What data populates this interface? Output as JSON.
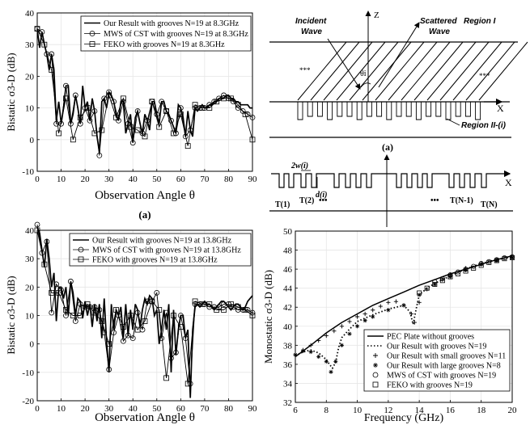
{
  "colors": {
    "line": "#000000",
    "grid": "#e6e6e6",
    "background": "#ffffff"
  },
  "chart_data": [
    {
      "type": "line",
      "panel_label": "(a)",
      "xlabel": "Observation Angle θ",
      "ylabel": "Bistatic σ3-D (dB)",
      "xlim": [
        0,
        90
      ],
      "ylim": [
        -10,
        40
      ],
      "xticks": [
        0,
        10,
        20,
        30,
        40,
        50,
        60,
        70,
        80,
        90
      ],
      "yticks": [
        -10,
        0,
        10,
        20,
        30,
        40
      ],
      "grid": true,
      "legend_position": "top-right",
      "series": [
        {
          "name": "Our Result with grooves N=19 at 8.3GHz",
          "marker": "none",
          "x": [
            0,
            1,
            2,
            3,
            4,
            5,
            6,
            7,
            8,
            9,
            10,
            11,
            12,
            13,
            14,
            15,
            16,
            17,
            18,
            19,
            20,
            21,
            22,
            23,
            24,
            25,
            26,
            27,
            28,
            29,
            30,
            31,
            32,
            33,
            34,
            35,
            36,
            37,
            38,
            39,
            40,
            41,
            42,
            43,
            44,
            45,
            46,
            47,
            48,
            49,
            50,
            51,
            52,
            53,
            54,
            55,
            56,
            57,
            58,
            59,
            60,
            61,
            62,
            63,
            64,
            65,
            66,
            67,
            68,
            69,
            70,
            71,
            72,
            73,
            74,
            75,
            76,
            77,
            78,
            79,
            80,
            81,
            82,
            83,
            84,
            85,
            86,
            87,
            88,
            89,
            90
          ],
          "y": [
            35,
            29,
            34,
            30,
            27,
            22,
            27,
            22,
            6,
            12,
            5,
            10,
            17,
            17,
            5,
            8,
            14,
            10,
            5,
            17,
            10,
            12,
            6,
            13,
            9,
            1,
            -4,
            12,
            13,
            10,
            15,
            14,
            12,
            8,
            6,
            12,
            12,
            2,
            5,
            8,
            -1,
            7,
            9,
            5,
            2,
            8,
            6,
            3,
            12,
            12,
            8,
            5,
            12,
            12,
            9,
            8,
            6,
            4,
            2,
            11,
            10,
            7,
            1,
            9,
            3,
            1,
            10,
            9,
            10,
            11,
            10,
            10,
            11,
            11,
            12,
            12,
            13,
            13,
            13,
            14,
            14,
            13,
            13,
            12,
            12,
            11,
            11,
            11,
            11,
            10,
            10
          ]
        },
        {
          "name": "MWS of CST with grooves N=19 at 8.3GHz",
          "marker": "circle",
          "x": [
            0,
            2,
            4,
            6,
            8,
            10,
            12,
            14,
            16,
            18,
            20,
            22,
            24,
            26,
            28,
            30,
            32,
            34,
            36,
            38,
            40,
            42,
            44,
            46,
            48,
            50,
            52,
            54,
            56,
            58,
            60,
            62,
            64,
            66,
            68,
            70,
            72,
            74,
            76,
            78,
            80,
            82,
            84,
            86,
            88,
            90
          ],
          "y": [
            35,
            34,
            27,
            27,
            5,
            5,
            17,
            5,
            14,
            5,
            10,
            6,
            9,
            -5,
            13,
            15,
            12,
            6,
            12,
            5,
            -1,
            9,
            2,
            6,
            12,
            8,
            12,
            9,
            6,
            2,
            10,
            1,
            3,
            10,
            10,
            10,
            11,
            12,
            13,
            14,
            13,
            12,
            10,
            9,
            8,
            7
          ]
        },
        {
          "name": "FEKO with grooves N=19 at 8.3GHz",
          "marker": "square",
          "x": [
            0,
            3,
            6,
            9,
            12,
            15,
            18,
            21,
            24,
            27,
            30,
            33,
            36,
            39,
            42,
            45,
            48,
            51,
            54,
            57,
            60,
            63,
            66,
            69,
            72,
            75,
            78,
            81,
            84,
            87,
            90
          ],
          "y": [
            35,
            30,
            22,
            2,
            13,
            0,
            7,
            10,
            2,
            3,
            14,
            7,
            13,
            4,
            3,
            1,
            12,
            4,
            9,
            2,
            8,
            -2,
            11,
            10,
            10,
            12,
            13,
            13,
            11,
            8,
            0
          ]
        }
      ]
    },
    {
      "type": "diagram",
      "panel_label": "(a)",
      "labels": {
        "axis_z": "Z",
        "axis_x": "X",
        "incident_1": "Incident",
        "incident_2": "Wave",
        "scattered_1": "Scattered",
        "scattered_2": "Wave",
        "region_1": "Region I",
        "region_2": "Region II-(i)",
        "theta": "θi",
        "dots_left": "***",
        "dots_right": "***"
      }
    },
    {
      "type": "diagram",
      "labels": {
        "width": "2w(i)",
        "depth": "d(i)",
        "t1": "T(1)",
        "t2": "T(2)",
        "tn1": "T(N-1)",
        "tn": "T(N)",
        "dots_left": "•••",
        "dots_right": "•••",
        "axis_x": "X"
      }
    },
    {
      "type": "line",
      "xlabel": "Observation Angle θ",
      "ylabel": "Bistatic σ3-D (dB)",
      "xlim": [
        0,
        90
      ],
      "ylim": [
        -20,
        40
      ],
      "xticks": [
        0,
        10,
        20,
        30,
        40,
        50,
        60,
        70,
        80,
        90
      ],
      "yticks": [
        -20,
        -10,
        0,
        10,
        20,
        30,
        40
      ],
      "grid": true,
      "legend_position": "top-right",
      "series": [
        {
          "name": "Our Result with grooves N=19 at 13.8GHz",
          "marker": "none",
          "x": [
            0,
            1,
            2,
            3,
            4,
            5,
            6,
            7,
            8,
            9,
            10,
            11,
            12,
            13,
            14,
            15,
            16,
            17,
            18,
            19,
            20,
            21,
            22,
            23,
            24,
            25,
            26,
            27,
            28,
            29,
            30,
            31,
            32,
            33,
            34,
            35,
            36,
            37,
            38,
            39,
            40,
            41,
            42,
            43,
            44,
            45,
            46,
            47,
            48,
            49,
            50,
            51,
            52,
            53,
            54,
            55,
            56,
            57,
            58,
            59,
            60,
            61,
            62,
            63,
            64,
            65,
            66,
            67,
            68,
            69,
            70,
            71,
            72,
            73,
            74,
            75,
            76,
            77,
            78,
            79,
            80,
            81,
            82,
            83,
            84,
            85,
            86,
            87,
            88,
            89,
            90
          ],
          "y": [
            41,
            39,
            33,
            27,
            37,
            30,
            20,
            25,
            8,
            20,
            20,
            16,
            20,
            10,
            22,
            18,
            10,
            16,
            15,
            9,
            15,
            10,
            14,
            6,
            14,
            8,
            14,
            2,
            16,
            1,
            -10,
            14,
            5,
            12,
            10,
            13,
            2,
            14,
            3,
            12,
            5,
            14,
            12,
            6,
            12,
            16,
            14,
            17,
            16,
            10,
            12,
            0,
            5,
            12,
            5,
            14,
            -10,
            12,
            -4,
            5,
            10,
            10,
            2,
            5,
            -19,
            5,
            13,
            14,
            13,
            14,
            15,
            14,
            14,
            13,
            12,
            13,
            14,
            15,
            15,
            14,
            13,
            12,
            13,
            14,
            14,
            13,
            12,
            13,
            15,
            16,
            17
          ]
        },
        {
          "name": "MWS of CST with grooves N=19 at 13.8GHz",
          "marker": "circle",
          "x": [
            0,
            2,
            4,
            6,
            8,
            10,
            12,
            14,
            16,
            18,
            20,
            22,
            24,
            26,
            28,
            30,
            32,
            34,
            36,
            38,
            40,
            42,
            44,
            46,
            48,
            50,
            52,
            54,
            56,
            58,
            60,
            62,
            64,
            66,
            68,
            70,
            72,
            74,
            76,
            78,
            80,
            82,
            84,
            86,
            88,
            90
          ],
          "y": [
            42,
            32,
            36,
            11,
            21,
            19,
            10,
            22,
            8,
            14,
            13,
            13,
            13,
            12,
            4,
            -9,
            4,
            10,
            1,
            3,
            2,
            11,
            5,
            15,
            15,
            18,
            2,
            11,
            -5,
            -3,
            10,
            2,
            -14,
            14,
            14,
            14,
            13,
            13,
            13,
            14,
            14,
            13,
            12,
            12,
            12,
            11
          ]
        },
        {
          "name": "FEKO with grooves N=19 at 13.8GHz",
          "marker": "square",
          "x": [
            0,
            3,
            6,
            9,
            12,
            15,
            18,
            21,
            24,
            27,
            30,
            33,
            36,
            39,
            42,
            45,
            48,
            51,
            54,
            57,
            60,
            63,
            66,
            69,
            72,
            75,
            78,
            81,
            84,
            87,
            90
          ],
          "y": [
            40,
            28,
            18,
            18,
            12,
            10,
            10,
            14,
            11,
            8,
            0,
            12,
            6,
            10,
            5,
            8,
            15,
            12,
            -12,
            10,
            6,
            -14,
            15,
            14,
            14,
            12,
            12,
            14,
            13,
            12,
            10
          ]
        }
      ]
    },
    {
      "type": "line",
      "xlabel": "Frequency (GHz)",
      "ylabel": "Monostatic σ3-D (dB)",
      "xlim": [
        6,
        20
      ],
      "ylim": [
        32,
        50
      ],
      "xticks": [
        6,
        8,
        10,
        12,
        14,
        16,
        18,
        20
      ],
      "yticks": [
        32,
        34,
        36,
        38,
        40,
        42,
        44,
        46,
        48,
        50
      ],
      "grid": true,
      "legend_position": "bottom-right",
      "series": [
        {
          "name": "PEC Plate without grooves",
          "marker": "none",
          "style": "solid",
          "x": [
            6,
            7,
            8,
            9,
            10,
            11,
            12,
            13,
            14,
            15,
            16,
            17,
            18,
            19,
            20
          ],
          "y": [
            36.8,
            38.0,
            39.3,
            40.4,
            41.3,
            42.2,
            42.9,
            43.6,
            44.3,
            44.9,
            45.5,
            46.0,
            46.5,
            47.0,
            47.4
          ]
        },
        {
          "name": "Our Result with grooves N=19",
          "marker": "none",
          "style": "dotted",
          "x": [
            6,
            6.5,
            7,
            7.5,
            8,
            8.2,
            8.4,
            8.6,
            8.8,
            9,
            9.5,
            10,
            11,
            12,
            13,
            13.4,
            13.6,
            13.8,
            14,
            14.5,
            15,
            16,
            17,
            18,
            19,
            20
          ],
          "y": [
            36.9,
            37.3,
            37.5,
            37.2,
            36.5,
            36.0,
            35.6,
            36.2,
            37.8,
            38.8,
            39.7,
            40.5,
            41.2,
            41.8,
            42.2,
            41.5,
            40.2,
            41.8,
            43.3,
            44.0,
            44.5,
            45.3,
            46.0,
            46.6,
            47.0,
            47.3
          ]
        },
        {
          "name": "Our Result with small grooves N=11",
          "marker": "plus",
          "x": [
            6,
            6.5,
            7,
            7.5,
            8,
            8.5,
            9,
            9.5,
            10,
            10.5,
            11,
            11.5,
            12,
            12.5,
            13,
            13.5,
            13.7,
            14,
            14.5,
            15,
            15.5,
            16,
            17,
            18,
            19,
            20
          ],
          "y": [
            37.0,
            37.5,
            38.0,
            38.5,
            39.0,
            39.5,
            40.0,
            40.5,
            41.0,
            41.3,
            41.7,
            42.1,
            42.5,
            42.6,
            42.2,
            41.3,
            40.4,
            42.5,
            43.9,
            44.4,
            44.9,
            45.4,
            46.1,
            46.6,
            47.0,
            47.3
          ]
        },
        {
          "name": "Our Result with large grooves N=8",
          "marker": "asterisk",
          "x": [
            6,
            6.5,
            7,
            7.5,
            8,
            8.3,
            8.6,
            9,
            9.5,
            10,
            10.5,
            11,
            12,
            13,
            14,
            15,
            16,
            17,
            18,
            19,
            20
          ],
          "y": [
            37.0,
            37.4,
            37.3,
            36.8,
            36.3,
            35.2,
            36.3,
            38.0,
            39.2,
            40.0,
            40.6,
            41.0,
            41.7,
            42.2,
            43.3,
            44.4,
            45.2,
            45.9,
            46.5,
            46.9,
            47.2
          ]
        },
        {
          "name": "MWS of CST with grooves N=19",
          "marker": "circle",
          "x": [
            15,
            15.5,
            16,
            16.5,
            17,
            17.5,
            18,
            18.5,
            19,
            19.5,
            20
          ],
          "y": [
            44.7,
            45.0,
            45.4,
            45.7,
            46.0,
            46.3,
            46.6,
            46.8,
            47.0,
            47.2,
            47.3
          ]
        },
        {
          "name": "FEKO with grooves N=19",
          "marker": "square",
          "x": [
            14,
            14.5,
            15,
            15.5,
            16,
            16.5,
            17,
            17.5,
            18,
            18.5,
            19,
            19.5,
            20
          ],
          "y": [
            43.5,
            44.0,
            44.4,
            44.8,
            45.2,
            45.5,
            45.8,
            46.1,
            46.4,
            46.7,
            46.9,
            47.1,
            47.2
          ]
        }
      ]
    }
  ]
}
